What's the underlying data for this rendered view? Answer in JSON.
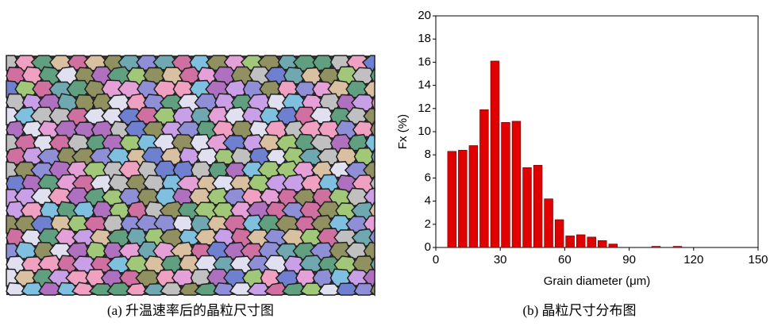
{
  "captions": [
    "(a) 升温速率后的晶粒尺寸图",
    "(b) 晶粒尺寸分布图"
  ],
  "chart_data": {
    "type": "histogram",
    "xlabel": "Grain diameter (μm)",
    "ylabel": "Fx (%)",
    "bins": [
      5,
      10,
      15,
      20,
      25,
      30,
      35,
      40,
      45,
      50,
      55,
      60,
      65,
      70,
      75,
      80,
      85,
      90,
      95,
      100,
      105,
      110,
      115
    ],
    "values": [
      8.3,
      8.4,
      8.8,
      11.9,
      16.1,
      10.8,
      10.9,
      6.9,
      7.1,
      4.2,
      2.4,
      1.0,
      1.1,
      0.9,
      0.6,
      0.3,
      0,
      0,
      0,
      0.1,
      0,
      0.1
    ],
    "color": "#e00000",
    "xlim": [
      0,
      150
    ],
    "xticks": [
      0,
      30,
      60,
      90,
      120,
      150
    ],
    "ylim": [
      0,
      20
    ],
    "yticks": [
      0,
      2,
      4,
      6,
      8,
      10,
      12,
      14,
      16,
      18,
      20
    ]
  }
}
